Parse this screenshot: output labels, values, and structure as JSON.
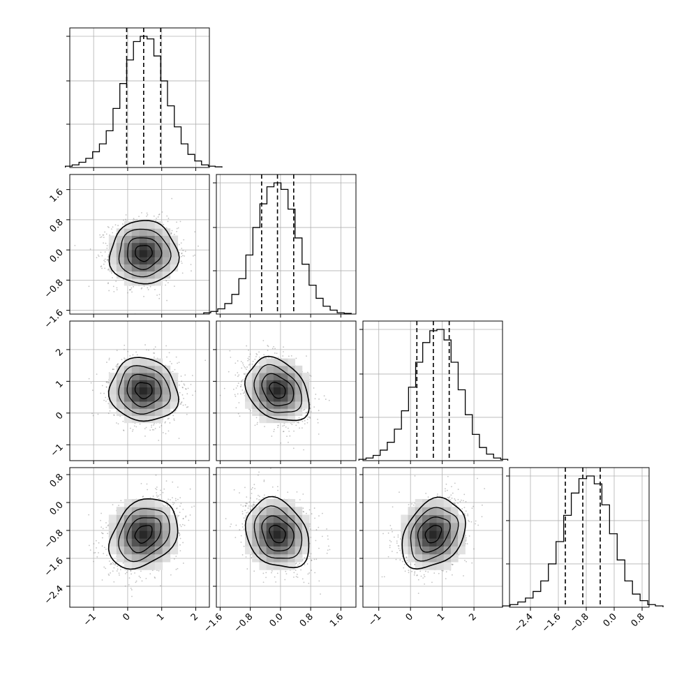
{
  "chart_data": {
    "type": "corner",
    "grid": true,
    "parameters": [
      {
        "index": 0,
        "range": [
          -1.7,
          2.4
        ],
        "ticks": [
          -1,
          0,
          1,
          2
        ],
        "tick_labels": [
          "−1",
          "0",
          "1",
          "2"
        ],
        "quantiles": [
          -0.03,
          0.47,
          0.97
        ],
        "histogram": [
          0.01,
          0.02,
          0.04,
          0.07,
          0.12,
          0.18,
          0.28,
          0.45,
          0.64,
          0.82,
          0.96,
          1.0,
          0.98,
          0.85,
          0.66,
          0.47,
          0.31,
          0.18,
          0.1,
          0.05,
          0.02,
          0.01,
          0.005
        ],
        "hist_ticks": [
          0.33,
          0.66,
          1.0
        ]
      },
      {
        "index": 1,
        "range": [
          -1.7,
          2.0
        ],
        "ticks": [
          -1.6,
          -0.8,
          0.0,
          0.8,
          1.6
        ],
        "tick_labels": [
          "−1.6",
          "−0.8",
          "0.0",
          "0.8",
          "1.6"
        ],
        "quantiles": [
          -0.5,
          -0.08,
          0.35
        ],
        "histogram": [
          0.01,
          0.02,
          0.04,
          0.08,
          0.15,
          0.27,
          0.45,
          0.66,
          0.84,
          0.97,
          1.0,
          0.95,
          0.8,
          0.58,
          0.38,
          0.22,
          0.12,
          0.06,
          0.03,
          0.01,
          0.005
        ],
        "hist_ticks": [
          0.33,
          0.66,
          1.0
        ]
      },
      {
        "index": 2,
        "range": [
          -1.5,
          2.9
        ],
        "ticks": [
          -1,
          0,
          1,
          2
        ],
        "tick_labels": [
          "−1",
          "0",
          "1",
          "2"
        ],
        "quantiles": [
          0.2,
          0.72,
          1.22
        ],
        "histogram": [
          0.01,
          0.02,
          0.04,
          0.08,
          0.14,
          0.24,
          0.38,
          0.56,
          0.75,
          0.9,
          0.99,
          1.0,
          0.92,
          0.75,
          0.54,
          0.35,
          0.2,
          0.1,
          0.05,
          0.02,
          0.01
        ],
        "hist_ticks": [
          0.33,
          0.66,
          1.0
        ]
      },
      {
        "index": 3,
        "range": [
          -3.0,
          1.0
        ],
        "ticks": [
          -2.4,
          -1.6,
          -0.8,
          0.0,
          0.8
        ],
        "tick_labels": [
          "−2.4",
          "−1.6",
          "−0.8",
          "0.0",
          "0.8"
        ],
        "quantiles": [
          -1.4,
          -0.9,
          -0.4
        ],
        "histogram": [
          0.01,
          0.02,
          0.04,
          0.07,
          0.12,
          0.2,
          0.33,
          0.5,
          0.7,
          0.87,
          0.98,
          1.0,
          0.94,
          0.78,
          0.56,
          0.36,
          0.2,
          0.1,
          0.05,
          0.02,
          0.01
        ],
        "hist_ticks": [
          0.33,
          0.66,
          1.0
        ]
      }
    ],
    "pairs": [
      {
        "x": 0,
        "y": 1,
        "mean": [
          0.47,
          -0.08
        ],
        "sd": [
          0.5,
          0.42
        ],
        "rho": 0.0
      },
      {
        "x": 0,
        "y": 2,
        "mean": [
          0.47,
          0.72
        ],
        "sd": [
          0.5,
          0.5
        ],
        "rho": -0.08
      },
      {
        "x": 1,
        "y": 2,
        "mean": [
          -0.08,
          0.72
        ],
        "sd": [
          0.42,
          0.5
        ],
        "rho": -0.3
      },
      {
        "x": 0,
        "y": 3,
        "mean": [
          0.47,
          -0.9
        ],
        "sd": [
          0.5,
          0.5
        ],
        "rho": 0.3
      },
      {
        "x": 1,
        "y": 3,
        "mean": [
          -0.08,
          -0.9
        ],
        "sd": [
          0.42,
          0.5
        ],
        "rho": -0.25
      },
      {
        "x": 2,
        "y": 3,
        "mean": [
          0.72,
          -0.9
        ],
        "sd": [
          0.5,
          0.5
        ],
        "rho": 0.3
      }
    ],
    "contour_levels_sigma": [
      0.5,
      1.0,
      1.5,
      2.0
    ],
    "colors": {
      "line": "#000000",
      "grid": "#b0b0b0",
      "density_max": "#2a2a2a",
      "scatter": "#777777"
    }
  }
}
